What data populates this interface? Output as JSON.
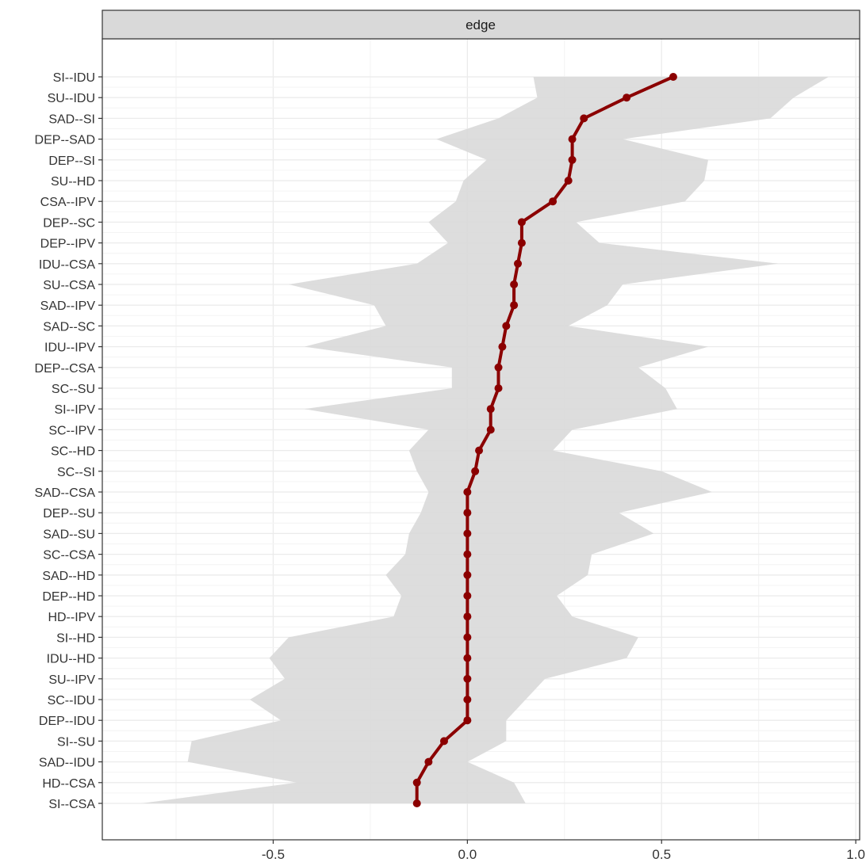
{
  "chart_data": {
    "type": "line",
    "strip_label": "edge",
    "title": "",
    "xlabel": "",
    "ylabel": "",
    "xlim": [
      -0.94,
      1.01
    ],
    "x_ticks": [
      -0.5,
      0.0,
      0.5,
      1.0
    ],
    "x_tick_labels": [
      "-0.5",
      "0.0",
      "0.5",
      "1.0"
    ],
    "grid": true,
    "colors": {
      "line": "#8b0000",
      "band": "#d9d9d9",
      "strip": "#d9d9d9",
      "grid": "#ebebeb"
    },
    "categories": [
      "SI--IDU",
      "SU--IDU",
      "SAD--SI",
      "DEP--SAD",
      "DEP--SI",
      "SU--HD",
      "CSA--IPV",
      "DEP--SC",
      "DEP--IPV",
      "IDU--CSA",
      "SU--CSA",
      "SAD--IPV",
      "SAD--SC",
      "IDU--IPV",
      "DEP--CSA",
      "SC--SU",
      "SI--IPV",
      "SC--IPV",
      "SC--HD",
      "SC--SI",
      "SAD--CSA",
      "DEP--SU",
      "SAD--SU",
      "SC--CSA",
      "SAD--HD",
      "DEP--HD",
      "HD--IPV",
      "SI--HD",
      "IDU--HD",
      "SU--IPV",
      "SC--IDU",
      "DEP--IDU",
      "SI--SU",
      "SAD--IDU",
      "HD--CSA",
      "SI--CSA"
    ],
    "series": [
      {
        "values": [
          0.53,
          0.41,
          0.3,
          0.27,
          0.27,
          0.26,
          0.22,
          0.14,
          0.14,
          0.13,
          0.12,
          0.12,
          0.1,
          0.09,
          0.08,
          0.08,
          0.06,
          0.06,
          0.03,
          0.02,
          0.0,
          0.0,
          0.0,
          0.0,
          0.0,
          0.0,
          0.0,
          0.0,
          0.0,
          0.0,
          0.0,
          0.0,
          -0.06,
          -0.1,
          -0.13,
          -0.13
        ]
      }
    ],
    "band_lower": [
      0.17,
      0.18,
      0.08,
      -0.08,
      0.05,
      -0.01,
      -0.03,
      -0.1,
      -0.05,
      -0.13,
      -0.46,
      -0.24,
      -0.21,
      -0.42,
      -0.04,
      -0.04,
      -0.42,
      -0.1,
      -0.15,
      -0.13,
      -0.1,
      -0.12,
      -0.15,
      -0.16,
      -0.21,
      -0.17,
      -0.19,
      -0.46,
      -0.51,
      -0.47,
      -0.56,
      -0.48,
      -0.71,
      -0.72,
      -0.44,
      -0.84
    ],
    "band_upper": [
      0.93,
      0.84,
      0.78,
      0.4,
      0.62,
      0.61,
      0.56,
      0.28,
      0.34,
      0.8,
      0.4,
      0.36,
      0.26,
      0.62,
      0.44,
      0.51,
      0.54,
      0.27,
      0.22,
      0.5,
      0.63,
      0.39,
      0.48,
      0.32,
      0.31,
      0.23,
      0.27,
      0.44,
      0.41,
      0.2,
      0.15,
      0.1,
      0.1,
      0.0,
      0.12,
      0.15
    ]
  }
}
